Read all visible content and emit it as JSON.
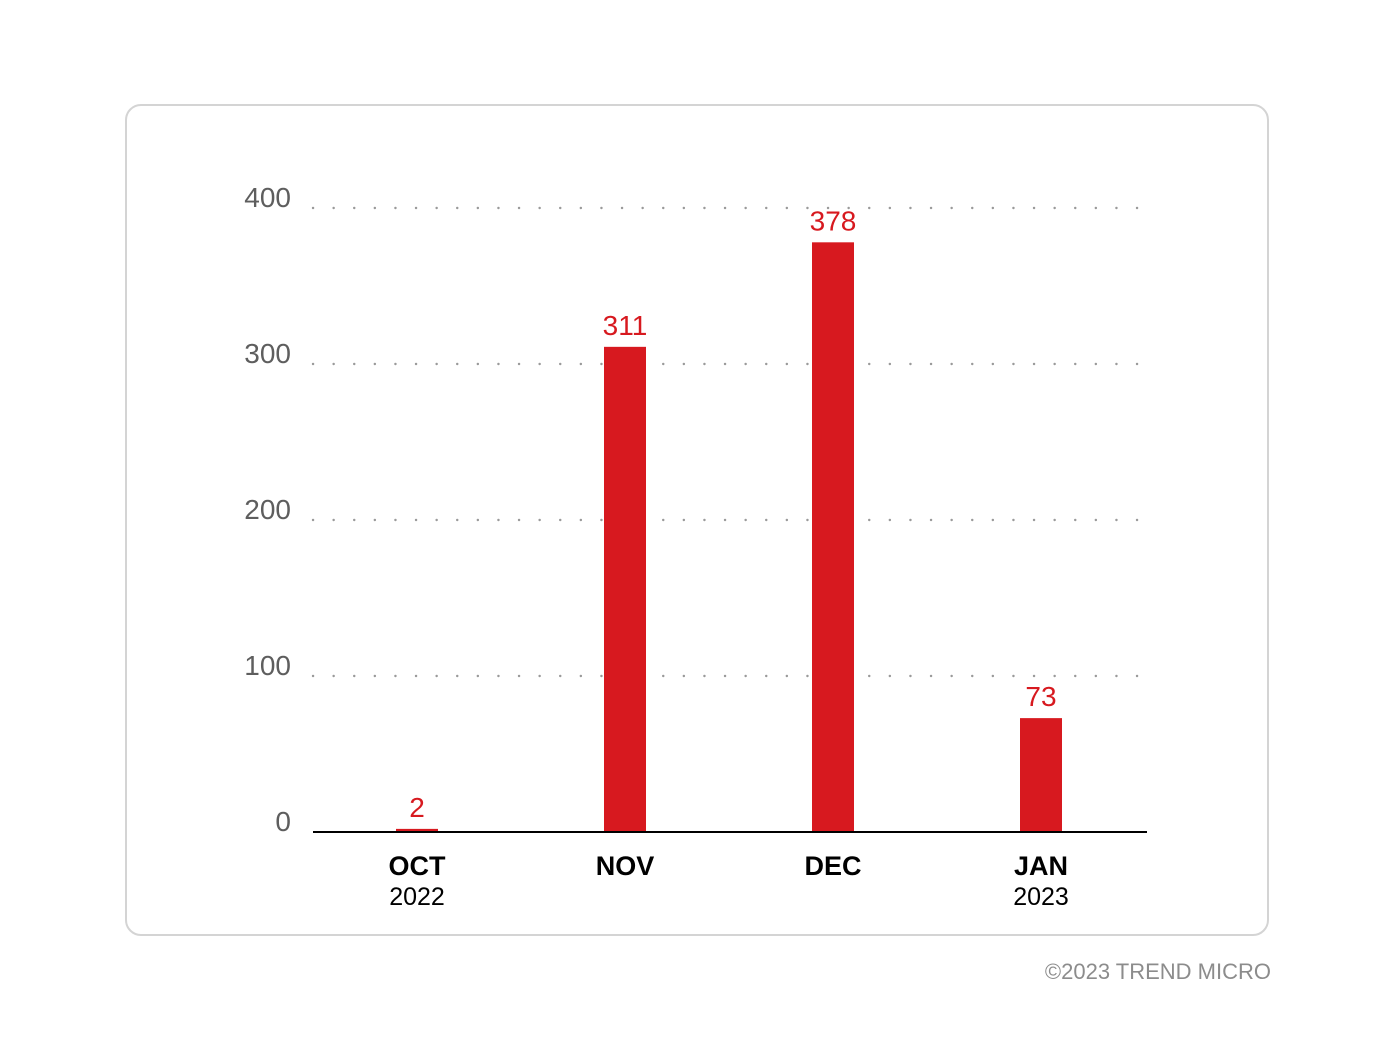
{
  "chart_data": {
    "type": "bar",
    "categories": [
      {
        "month": "OCT",
        "year": "2022"
      },
      {
        "month": "NOV",
        "year": ""
      },
      {
        "month": "DEC",
        "year": ""
      },
      {
        "month": "JAN",
        "year": "2023"
      }
    ],
    "values": [
      2,
      311,
      378,
      73
    ],
    "value_labels": [
      "2",
      "311",
      "378",
      "73"
    ],
    "y_ticks": [
      "0",
      "100",
      "200",
      "300",
      "400"
    ],
    "ylim": [
      0,
      400
    ],
    "grid": "dotted horizontal",
    "colors": {
      "bar": "#d7191f",
      "value_label": "#d7191f",
      "tick_label": "#5e5e5e",
      "category_label": "#000000",
      "grid": "#9a9a9a",
      "axis": "#000000"
    }
  },
  "footer": {
    "copyright": "©2023 TREND MICRO"
  }
}
